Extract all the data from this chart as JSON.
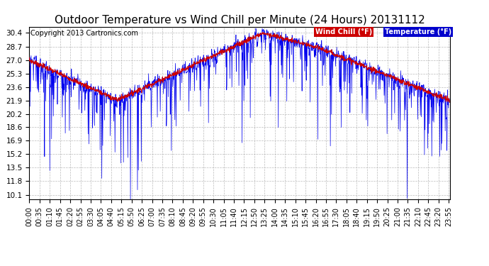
{
  "title": "Outdoor Temperature vs Wind Chill per Minute (24 Hours) 20131112",
  "copyright": "Copyright 2013 Cartronics.com",
  "legend_wind_chill": "Wind Chill (°F)",
  "legend_temperature": "Temperature (°F)",
  "wind_chill_color": "#cc0000",
  "temperature_color": "#0000ee",
  "wind_chill_legend_bg": "#cc0000",
  "temperature_legend_bg": "#0000cc",
  "background_color": "#ffffff",
  "plot_background": "#ffffff",
  "grid_color": "#aaaaaa",
  "yticks": [
    10.1,
    11.8,
    13.5,
    15.2,
    16.9,
    18.6,
    20.2,
    21.9,
    23.6,
    25.3,
    27.0,
    28.7,
    30.4
  ],
  "ylim": [
    9.5,
    31.2
  ],
  "title_fontsize": 11,
  "axis_fontsize": 7.5,
  "copyright_fontsize": 7
}
